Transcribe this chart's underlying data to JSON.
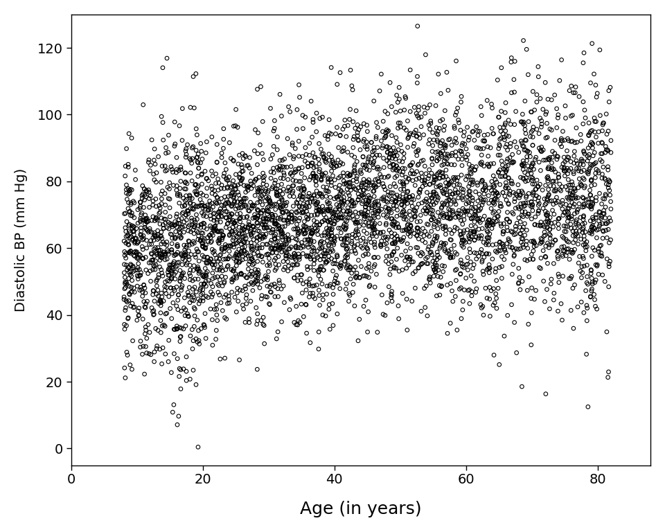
{
  "title": "",
  "xlabel": "Age (in years)",
  "ylabel": "Diastolic BP (mm Hg)",
  "xlim": [
    0,
    88
  ],
  "ylim": [
    -5,
    130
  ],
  "xticks": [
    0,
    20,
    40,
    60,
    80
  ],
  "yticks": [
    0,
    20,
    40,
    60,
    80,
    100,
    120
  ],
  "marker": "o",
  "marker_size": 16,
  "marker_facecolor": "none",
  "marker_edgecolor": "black",
  "marker_linewidth": 0.8,
  "background_color": "white",
  "xlabel_fontsize": 18,
  "ylabel_fontsize": 14,
  "tick_fontsize": 14,
  "seed": 42
}
